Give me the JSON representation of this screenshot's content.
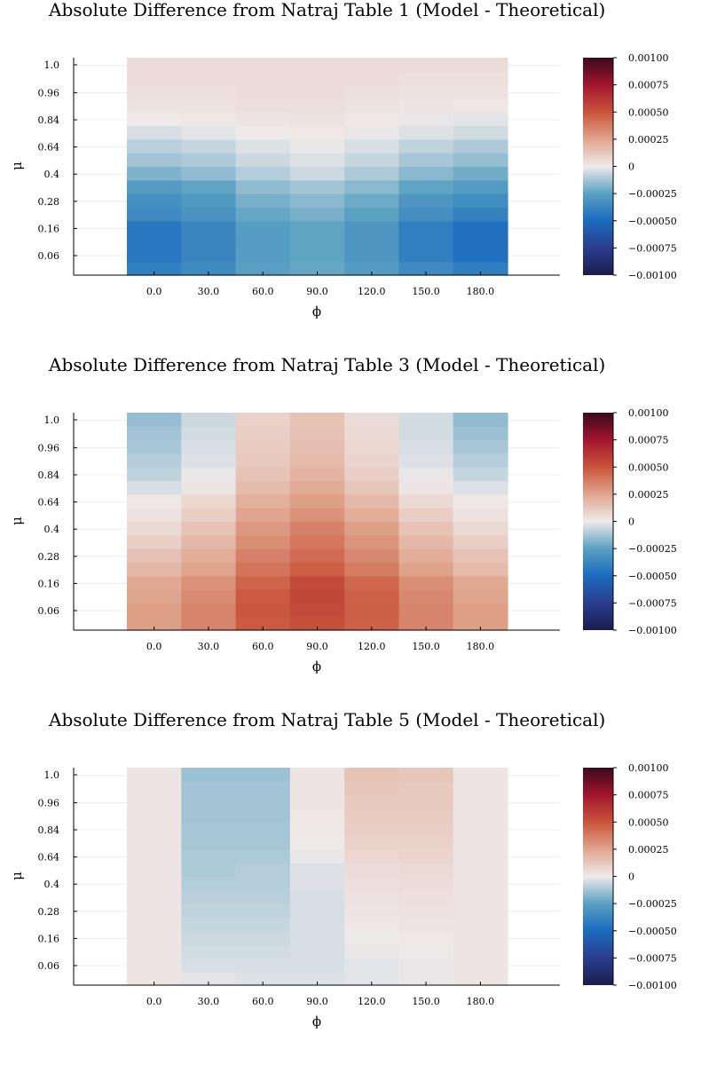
{
  "chart_data": [
    {
      "type": "heatmap",
      "title": "Absolute Difference from Natraj Table 1 (Model - Theoretical)",
      "xlabel": "ϕ",
      "ylabel": "μ",
      "x_ticks": [
        "0.0",
        "30.0",
        "60.0",
        "90.0",
        "120.0",
        "150.0",
        "180.0"
      ],
      "y_ticks": [
        "0.06",
        "0.16",
        "0.28",
        "0.4",
        "0.64",
        "0.84",
        "0.96",
        "1.0"
      ],
      "y_rows_bottom_to_top": [
        "r1",
        "r2",
        "r3",
        "r4",
        "r5",
        "r6",
        "r7",
        "r8",
        "r9",
        "r10",
        "r11",
        "r12",
        "r13",
        "r14",
        "r15",
        "r16"
      ],
      "clim": [
        -0.001,
        0.001
      ],
      "colorbar_ticks": [
        "−0.00100",
        "−0.00075",
        "−0.00050",
        "−0.00025",
        "0",
        "0.00025",
        "0.00050",
        "0.00075",
        "0.00100"
      ],
      "grid": true,
      "values": [
        [
          -0.00041,
          -0.00036,
          -0.00026,
          -0.00023,
          -0.00028,
          -0.00036,
          -0.00042
        ],
        [
          -0.00045,
          -0.00038,
          -0.00027,
          -0.00024,
          -0.0003,
          -0.00041,
          -0.00048
        ],
        [
          -0.00045,
          -0.00038,
          -0.00027,
          -0.00024,
          -0.0003,
          -0.00041,
          -0.00048
        ],
        [
          -0.00045,
          -0.00038,
          -0.00027,
          -0.00024,
          -0.0003,
          -0.00041,
          -0.00048
        ],
        [
          -0.00036,
          -0.00032,
          -0.00023,
          -0.0002,
          -0.00025,
          -0.00034,
          -0.0004
        ],
        [
          -0.00033,
          -0.00029,
          -0.0002,
          -0.00017,
          -0.00022,
          -0.0003,
          -0.00035
        ],
        [
          -0.00028,
          -0.00024,
          -0.00016,
          -0.00013,
          -0.00017,
          -0.00024,
          -0.00028
        ],
        [
          -0.00019,
          -0.00016,
          -0.0001,
          -6e-05,
          -0.00011,
          -0.00017,
          -0.00021
        ],
        [
          -0.00013,
          -0.00011,
          -6e-05,
          -3e-05,
          -7e-05,
          -0.00012,
          -0.00015
        ],
        [
          -9e-05,
          -7e-05,
          -3e-05,
          -1e-05,
          -4e-05,
          -8e-05,
          -0.00011
        ],
        [
          -4e-05,
          -2e-05,
          0.0,
          1e-05,
          -1e-05,
          -3e-05,
          -5e-05
        ],
        [
          0.0,
          1e-05,
          2e-05,
          3e-05,
          1e-05,
          -1e-05,
          -2e-05
        ],
        [
          3e-05,
          3e-05,
          4e-05,
          4e-05,
          3e-05,
          2e-05,
          1e-05
        ],
        [
          4e-05,
          4e-05,
          5e-05,
          5e-05,
          4e-05,
          3e-05,
          3e-05
        ],
        [
          5e-05,
          5e-05,
          5e-05,
          5e-05,
          5e-05,
          4e-05,
          4e-05
        ],
        [
          5e-05,
          5e-05,
          5e-05,
          5e-05,
          5e-05,
          5e-05,
          5e-05
        ]
      ]
    },
    {
      "type": "heatmap",
      "title": "Absolute Difference from Natraj Table 3 (Model - Theoretical)",
      "xlabel": "ϕ",
      "ylabel": "μ",
      "x_ticks": [
        "0.0",
        "30.0",
        "60.0",
        "90.0",
        "120.0",
        "150.0",
        "180.0"
      ],
      "y_ticks": [
        "0.06",
        "0.16",
        "0.28",
        "0.4",
        "0.64",
        "0.84",
        "0.96",
        "1.0"
      ],
      "clim": [
        -0.001,
        0.001
      ],
      "colorbar_ticks": [
        "−0.00100",
        "−0.00075",
        "−0.00050",
        "−0.00025",
        "0",
        "0.00025",
        "0.00050",
        "0.00075",
        "0.00100"
      ],
      "grid": true,
      "values": [
        [
          0.00027,
          0.00035,
          0.00048,
          0.00052,
          0.00046,
          0.00035,
          0.00027
        ],
        [
          0.00027,
          0.00035,
          0.00049,
          0.00054,
          0.00047,
          0.00035,
          0.00027
        ],
        [
          0.00025,
          0.00033,
          0.00048,
          0.00055,
          0.00046,
          0.00034,
          0.00025
        ],
        [
          0.00024,
          0.00031,
          0.00045,
          0.00054,
          0.00044,
          0.00032,
          0.00024
        ],
        [
          0.00018,
          0.00025,
          0.0004,
          0.00047,
          0.00038,
          0.00026,
          0.00017
        ],
        [
          0.00015,
          0.00022,
          0.00036,
          0.00043,
          0.00034,
          0.00022,
          0.00014
        ],
        [
          0.0001,
          0.00018,
          0.00032,
          0.00039,
          0.0003,
          0.00018,
          0.0001
        ],
        [
          6e-05,
          0.00014,
          0.00029,
          0.00036,
          0.00027,
          0.00014,
          6e-05
        ],
        [
          3e-05,
          0.0001,
          0.00025,
          0.00031,
          0.00022,
          0.0001,
          3e-05
        ],
        [
          1e-05,
          7e-05,
          0.00021,
          0.00027,
          0.00018,
          6e-05,
          1e-05
        ],
        [
          -4e-05,
          2e-05,
          0.00017,
          0.00023,
          0.00013,
          2e-05,
          -3e-05
        ],
        [
          -8e-05,
          -1e-05,
          0.00014,
          0.0002,
          0.0001,
          -1e-05,
          -7e-05
        ],
        [
          -0.0001,
          -3e-05,
          0.00012,
          0.00017,
          8e-05,
          -3e-05,
          -0.0001
        ],
        [
          -0.00012,
          -4e-05,
          0.00011,
          0.00016,
          7e-05,
          -4e-05,
          -0.00012
        ],
        [
          -0.00013,
          -5e-05,
          0.0001,
          0.00015,
          6e-05,
          -5e-05,
          -0.00014
        ],
        [
          -0.00015,
          -6e-05,
          9e-05,
          0.00014,
          5e-05,
          -5e-05,
          -0.00016
        ]
      ]
    },
    {
      "type": "heatmap",
      "title": "Absolute Difference from Natraj Table 5 (Model - Theoretical)",
      "xlabel": "ϕ",
      "ylabel": "μ",
      "x_ticks": [
        "0.0",
        "30.0",
        "60.0",
        "90.0",
        "120.0",
        "150.0",
        "180.0"
      ],
      "y_ticks": [
        "0.06",
        "0.16",
        "0.28",
        "0.4",
        "0.64",
        "0.84",
        "0.96",
        "1.0"
      ],
      "clim": [
        -0.001,
        0.001
      ],
      "colorbar_ticks": [
        "−0.00100",
        "−0.00075",
        "−0.00050",
        "−0.00025",
        "0",
        "0.00025",
        "0.00050",
        "0.00075",
        "0.00100"
      ],
      "grid": true,
      "values": [
        [
          2e-05,
          -2e-05,
          -3e-05,
          -3e-05,
          -2e-05,
          -1e-05,
          2e-05
        ],
        [
          2e-05,
          -4e-05,
          -4e-05,
          -4e-05,
          -2e-05,
          -1e-05,
          2e-05
        ],
        [
          2e-05,
          -5e-05,
          -5e-05,
          -4e-05,
          -1e-05,
          0.0,
          2e-05
        ],
        [
          2e-05,
          -6e-05,
          -6e-05,
          -4e-05,
          0.0,
          1e-05,
          2e-05
        ],
        [
          2e-05,
          -7e-05,
          -7e-05,
          -4e-05,
          1e-05,
          2e-05,
          2e-05
        ],
        [
          2e-05,
          -8e-05,
          -8e-05,
          -4e-05,
          2e-05,
          3e-05,
          2e-05
        ],
        [
          2e-05,
          -9e-05,
          -9e-05,
          -4e-05,
          3e-05,
          4e-05,
          2e-05
        ],
        [
          2e-05,
          -0.0001,
          -0.0001,
          -3e-05,
          4e-05,
          5e-05,
          2e-05
        ],
        [
          2e-05,
          -0.00011,
          -0.0001,
          -3e-05,
          5e-05,
          6e-05,
          2e-05
        ],
        [
          2e-05,
          -0.00011,
          -0.00011,
          -1e-05,
          7e-05,
          8e-05,
          2e-05
        ],
        [
          2e-05,
          -0.00012,
          -0.00012,
          0.0,
          9e-05,
          9e-05,
          2e-05
        ],
        [
          2e-05,
          -0.00012,
          -0.00012,
          1e-05,
          0.0001,
          0.0001,
          2e-05
        ],
        [
          2e-05,
          -0.00013,
          -0.00013,
          1e-05,
          0.00011,
          0.00011,
          2e-05
        ],
        [
          2e-05,
          -0.00013,
          -0.00013,
          2e-05,
          0.00012,
          0.00012,
          2e-05
        ],
        [
          2e-05,
          -0.00013,
          -0.00013,
          2e-05,
          0.00013,
          0.00012,
          2e-05
        ],
        [
          2e-05,
          -0.00014,
          -0.00014,
          2e-05,
          0.00014,
          0.00013,
          2e-05
        ]
      ]
    }
  ],
  "colormap": [
    [
      0.0,
      "#1a1f4c"
    ],
    [
      0.125,
      "#2a3c8f"
    ],
    [
      0.25,
      "#1c6cbf"
    ],
    [
      0.375,
      "#5aa1c2"
    ],
    [
      0.5,
      "#efeaea"
    ],
    [
      0.625,
      "#e0a58e"
    ],
    [
      0.75,
      "#c8543a"
    ],
    [
      0.875,
      "#a3152f"
    ],
    [
      1.0,
      "#3a0a1c"
    ]
  ]
}
